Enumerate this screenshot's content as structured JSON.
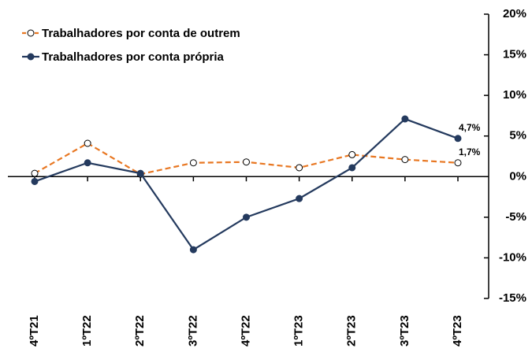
{
  "chart_data": {
    "type": "line",
    "categories": [
      "4ºT21",
      "1ºT22",
      "2ºT22",
      "3ºT22",
      "4ºT22",
      "1ºT23",
      "2ºT23",
      "3ºT23",
      "4ºT23"
    ],
    "series": [
      {
        "name": "Trabalhadores por conta de outrem",
        "color": "#e87722",
        "dashed": true,
        "values": [
          0.4,
          4.1,
          0.3,
          1.7,
          1.8,
          1.1,
          2.7,
          2.1,
          1.7
        ],
        "value_labels": [
          null,
          null,
          null,
          null,
          null,
          null,
          null,
          null,
          "1,7%"
        ]
      },
      {
        "name": "Trabalhadores por conta própria",
        "color": "#243a5e",
        "dashed": false,
        "values": [
          -0.6,
          1.7,
          0.4,
          -9.0,
          -5.0,
          -2.7,
          1.1,
          7.1,
          4.7
        ],
        "value_labels": [
          null,
          null,
          null,
          null,
          null,
          null,
          null,
          null,
          "4,7%"
        ]
      }
    ],
    "ylim": [
      -15,
      20
    ],
    "yticks": [
      {
        "value": -15,
        "label": "-15%"
      },
      {
        "value": -10,
        "label": "-10%"
      },
      {
        "value": -5,
        "label": "-5%"
      },
      {
        "value": 0,
        "label": "0%"
      },
      {
        "value": 5,
        "label": "5%"
      },
      {
        "value": 10,
        "label": "10%"
      },
      {
        "value": 15,
        "label": "15%"
      },
      {
        "value": 20,
        "label": "20%"
      }
    ],
    "legend": "top-left"
  }
}
